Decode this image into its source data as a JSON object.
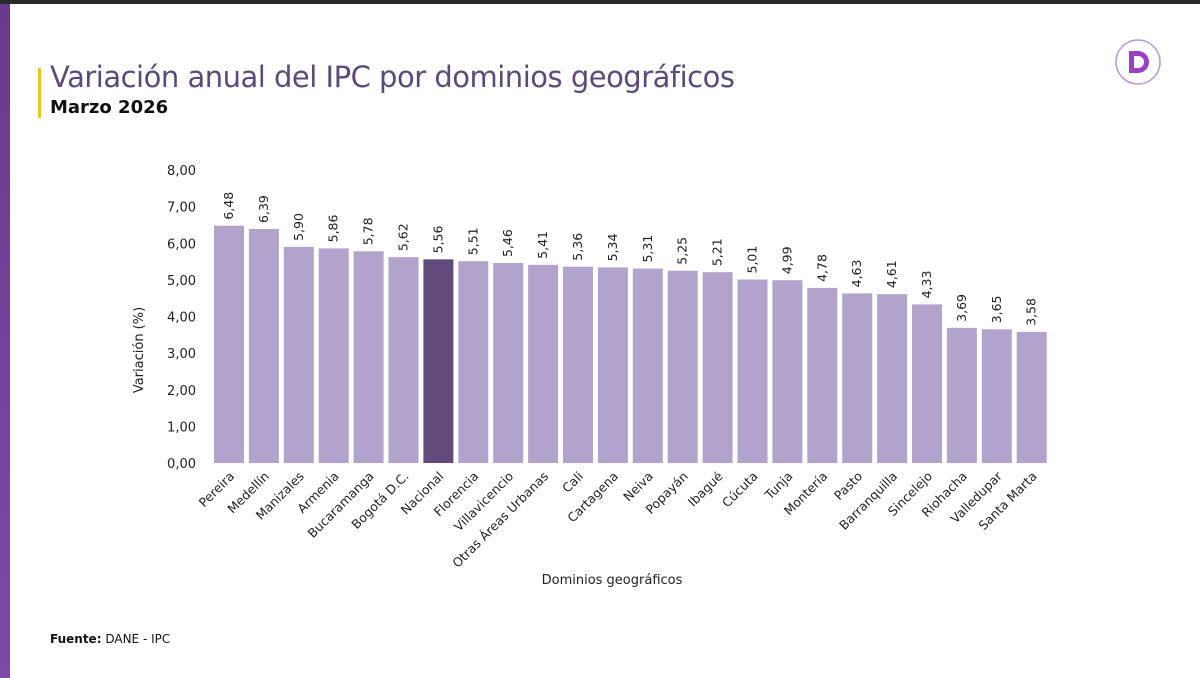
{
  "header": {
    "title": "Variación anual del IPC por dominios geográficos",
    "subtitle": "Marzo 2026"
  },
  "footer": {
    "source_label": "Fuente:",
    "source_value": "DANE - IPC"
  },
  "logo": {
    "letter": "D",
    "color": "#9b3fc4"
  },
  "colors": {
    "bar": "#b1a3cb",
    "highlight": "#614b7c",
    "accent": "#f0c419",
    "title": "#5b4a7a"
  },
  "chart_data": {
    "type": "bar",
    "xlabel": "Dominios geográficos",
    "ylabel": "Variación (%)",
    "ylim": [
      0,
      8
    ],
    "yticks": [
      "0,00",
      "1,00",
      "2,00",
      "3,00",
      "4,00",
      "5,00",
      "6,00",
      "7,00",
      "8,00"
    ],
    "grid": false,
    "highlight": "Nacional",
    "categories": [
      "Pereira",
      "Medellín",
      "Manizales",
      "Armenia",
      "Bucaramanga",
      "Bogotá D.C.",
      "Nacional",
      "Florencia",
      "Villavicencio",
      "Otras Áreas Urbanas",
      "Cali",
      "Cartagena",
      "Neiva",
      "Popayán",
      "Ibagué",
      "Cúcuta",
      "Tunja",
      "Montería",
      "Pasto",
      "Barranquilla",
      "Sincelejo",
      "Riohacha",
      "Valledupar",
      "Santa Marta"
    ],
    "values": [
      6.48,
      6.39,
      5.9,
      5.86,
      5.78,
      5.62,
      5.56,
      5.51,
      5.46,
      5.41,
      5.36,
      5.34,
      5.31,
      5.25,
      5.21,
      5.01,
      4.99,
      4.78,
      4.63,
      4.61,
      4.33,
      3.69,
      3.65,
      3.58
    ],
    "labels": [
      "6,48",
      "6,39",
      "5,90",
      "5,86",
      "5,78",
      "5,62",
      "5,56",
      "5,51",
      "5,46",
      "5,41",
      "5,36",
      "5,34",
      "5,31",
      "5,25",
      "5,21",
      "5,01",
      "4,99",
      "4,78",
      "4,63",
      "4,61",
      "4,33",
      "3,69",
      "3,65",
      "3,58"
    ]
  }
}
